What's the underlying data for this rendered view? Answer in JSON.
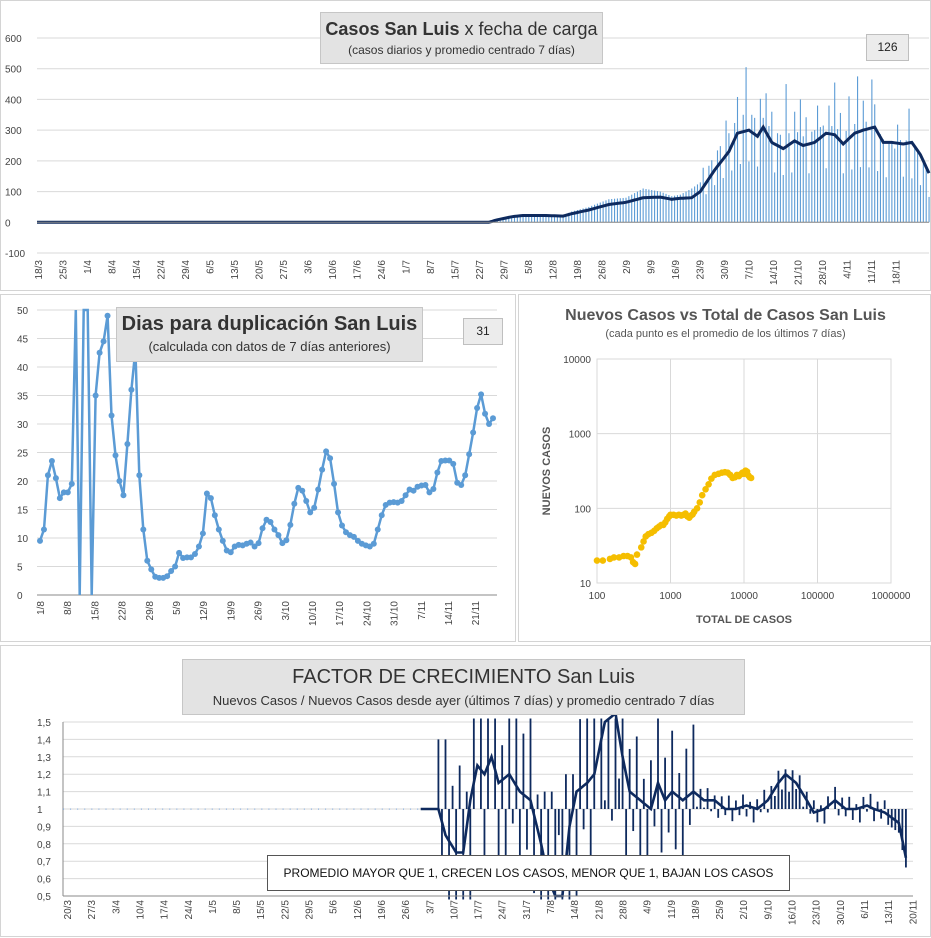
{
  "chart_data": [
    {
      "id": "cases",
      "type": "bar+line",
      "title_bold": "Casos San Luis",
      "title_rest": "x fecha de carga",
      "subtitle": "(casos diarios y promedio  centrado 7 días)",
      "badge": "126",
      "ylim": [
        -100,
        600
      ],
      "yticks": [
        -100,
        0,
        100,
        200,
        300,
        400,
        500,
        600
      ],
      "xticks": [
        "18/3",
        "25/3",
        "1/4",
        "8/4",
        "15/4",
        "22/4",
        "29/4",
        "6/5",
        "13/5",
        "20/5",
        "27/5",
        "3/6",
        "10/6",
        "17/6",
        "24/6",
        "1/7",
        "8/7",
        "15/7",
        "22/7",
        "29/7",
        "5/8",
        "12/8",
        "19/8",
        "26/8",
        "2/9",
        "9/9",
        "16/9",
        "23/9",
        "30/9",
        "7/10",
        "14/10",
        "21/10",
        "28/10",
        "4/11",
        "11/11",
        "18/11"
      ],
      "series": [
        {
          "name": "promedio centrado 7 días",
          "kind": "line",
          "color": "#0e2a5e",
          "knots": [
            [
              0,
              0
            ],
            [
              158,
              0
            ],
            [
              161,
              8
            ],
            [
              166,
              18
            ],
            [
              170,
              22
            ],
            [
              178,
              22
            ],
            [
              184,
              20
            ],
            [
              187,
              28
            ],
            [
              193,
              40
            ],
            [
              200,
              58
            ],
            [
              206,
              65
            ],
            [
              212,
              80
            ],
            [
              218,
              82
            ],
            [
              222,
              75
            ],
            [
              225,
              78
            ],
            [
              229,
              80
            ],
            [
              232,
              100
            ],
            [
              237,
              170
            ],
            [
              242,
              230
            ],
            [
              245,
              290
            ],
            [
              249,
              300
            ],
            [
              252,
              280
            ],
            [
              254,
              310
            ],
            [
              257,
              260
            ],
            [
              261,
              240
            ],
            [
              265,
              265
            ],
            [
              268,
              250
            ],
            [
              272,
              260
            ],
            [
              276,
              290
            ],
            [
              279,
              285
            ],
            [
              282,
              255
            ],
            [
              286,
              290
            ],
            [
              289,
              300
            ],
            [
              293,
              310
            ],
            [
              296,
              260
            ],
            [
              299,
              260
            ],
            [
              303,
              255
            ],
            [
              306,
              260
            ],
            [
              309,
              220
            ],
            [
              312,
              160
            ]
          ]
        },
        {
          "name": "casos diarios",
          "kind": "bar",
          "color": "#5b9bd5",
          "knots": [
            [
              0,
              0
            ],
            [
              158,
              0
            ],
            [
              161,
              12
            ],
            [
              166,
              22
            ],
            [
              170,
              25
            ],
            [
              178,
              25
            ],
            [
              184,
              22
            ],
            [
              187,
              35
            ],
            [
              193,
              50
            ],
            [
              200,
              75
            ],
            [
              206,
              80
            ],
            [
              212,
              110
            ],
            [
              218,
              100
            ],
            [
              222,
              85
            ],
            [
              225,
              90
            ],
            [
              229,
              110
            ],
            [
              232,
              130
            ],
            [
              237,
              220
            ],
            [
              242,
              290
            ],
            [
              245,
              340
            ],
            [
              249,
              360
            ],
            [
              252,
              330
            ],
            [
              254,
              340
            ],
            [
              257,
              300
            ],
            [
              261,
              280
            ],
            [
              265,
              300
            ],
            [
              268,
              280
            ],
            [
              272,
              300
            ],
            [
              276,
              320
            ],
            [
              279,
              310
            ],
            [
              282,
              290
            ],
            [
              286,
              320
            ],
            [
              289,
              330
            ],
            [
              293,
              320
            ],
            [
              296,
              270
            ],
            [
              299,
              260
            ],
            [
              303,
              270
            ],
            [
              306,
              260
            ],
            [
              309,
              220
            ],
            [
              312,
              150
            ]
          ],
          "peaks": [
            [
              248,
              505
            ],
            [
              255,
              420
            ],
            [
              262,
              450
            ],
            [
              267,
              400
            ],
            [
              273,
              380
            ],
            [
              279,
              455
            ],
            [
              284,
              410
            ],
            [
              287,
              475
            ],
            [
              292,
              465
            ],
            [
              300,
              240
            ],
            [
              305,
              370
            ]
          ]
        }
      ]
    },
    {
      "id": "doubling",
      "type": "line",
      "title": "Dias para duplicación San Luis",
      "subtitle": "(calculada con datos de 7 días anteriores)",
      "badge": "31",
      "ylim": [
        0,
        50
      ],
      "yticks": [
        0,
        5,
        10,
        15,
        20,
        25,
        30,
        35,
        40,
        45,
        50
      ],
      "xticks": [
        "1/8",
        "8/8",
        "15/8",
        "22/8",
        "29/8",
        "5/9",
        "12/9",
        "19/9",
        "26/9",
        "3/10",
        "10/10",
        "17/10",
        "24/10",
        "31/10",
        "7/11",
        "14/11",
        "21/11"
      ],
      "series": [
        {
          "name": "días para duplicación",
          "color": "#5b9bd5",
          "values": [
            9.5,
            11.5,
            21,
            23.5,
            20.5,
            17,
            18,
            18,
            19.5,
            50,
            0,
            50,
            50,
            0,
            35,
            42.5,
            44.5,
            49,
            31.5,
            24.5,
            20,
            17.5,
            26.5,
            36,
            43,
            21,
            11.5,
            6,
            4.5,
            3.2,
            3,
            3,
            3.3,
            4.2,
            5,
            7.4,
            6.5,
            6.6,
            6.6,
            7.2,
            8.5,
            10.8,
            17.8,
            17,
            14,
            11.5,
            9.5,
            7.8,
            7.5,
            8.5,
            8.8,
            8.7,
            9,
            9.2,
            8.5,
            9.1,
            11.7,
            13.2,
            12.8,
            11.5,
            10.5,
            9.1,
            9.6,
            12.3,
            16,
            18.8,
            18.3,
            16.5,
            14.5,
            15.3,
            18.5,
            22,
            25.2,
            24,
            19.5,
            14.5,
            12.2,
            11,
            10.5,
            10.2,
            9.5,
            9,
            8.7,
            8.5,
            9,
            11.5,
            14,
            15.8,
            16.2,
            16.3,
            16.2,
            16.5,
            17.5,
            18.5,
            18.3,
            19,
            19.2,
            19.3,
            18,
            18.6,
            21.5,
            23.5,
            23.6,
            23.6,
            23,
            19.7,
            19.3,
            21,
            24.7,
            28.5,
            32.8,
            35.2,
            31.8,
            30,
            31
          ]
        }
      ]
    },
    {
      "id": "scatter",
      "type": "scatter",
      "title": "Nuevos Casos vs Total de Casos San Luis",
      "subtitle": "(cada punto es el promedio de los últimos 7 días)",
      "xlabel": "TOTAL DE CASOS",
      "ylabel": "NUEVOS CASOS",
      "xscale": "log",
      "yscale": "log",
      "xlim": [
        100,
        1000000
      ],
      "ylim": [
        10,
        10000
      ],
      "xticks": [
        "100",
        "1000",
        "10000",
        "100000",
        "1000000"
      ],
      "yticks": [
        "10",
        "100",
        "1000",
        "10000"
      ],
      "series": [
        {
          "name": "promedio últimos 7 días",
          "color": "#f5be00",
          "points": [
            [
              100,
              20
            ],
            [
              120,
              20
            ],
            [
              150,
              21
            ],
            [
              170,
              22
            ],
            [
              200,
              22
            ],
            [
              230,
              23
            ],
            [
              260,
              23
            ],
            [
              290,
              22
            ],
            [
              310,
              19
            ],
            [
              330,
              18
            ],
            [
              350,
              24
            ],
            [
              400,
              30
            ],
            [
              430,
              36
            ],
            [
              460,
              42
            ],
            [
              500,
              45
            ],
            [
              550,
              47
            ],
            [
              600,
              50
            ],
            [
              650,
              54
            ],
            [
              700,
              57
            ],
            [
              750,
              60
            ],
            [
              800,
              60
            ],
            [
              850,
              65
            ],
            [
              900,
              72
            ],
            [
              960,
              78
            ],
            [
              1000,
              82
            ],
            [
              1100,
              82
            ],
            [
              1200,
              80
            ],
            [
              1300,
              82
            ],
            [
              1400,
              80
            ],
            [
              1500,
              82
            ],
            [
              1600,
              85
            ],
            [
              1700,
              78
            ],
            [
              1800,
              75
            ],
            [
              1900,
              80
            ],
            [
              2000,
              83
            ],
            [
              2100,
              90
            ],
            [
              2300,
              100
            ],
            [
              2500,
              120
            ],
            [
              2700,
              150
            ],
            [
              3000,
              180
            ],
            [
              3300,
              210
            ],
            [
              3600,
              250
            ],
            [
              4000,
              280
            ],
            [
              4500,
              290
            ],
            [
              5000,
              300
            ],
            [
              5500,
              305
            ],
            [
              6000,
              300
            ],
            [
              6500,
              280
            ],
            [
              7000,
              255
            ],
            [
              7500,
              260
            ],
            [
              8000,
              280
            ],
            [
              8500,
              270
            ],
            [
              9000,
              285
            ],
            [
              9500,
              300
            ],
            [
              10000,
              290
            ],
            [
              10500,
              320
            ],
            [
              11000,
              310
            ],
            [
              11500,
              275
            ],
            [
              12000,
              260
            ],
            [
              12500,
              255
            ]
          ]
        }
      ]
    },
    {
      "id": "growth",
      "type": "bar+line",
      "title": "FACTOR DE CRECIMIENTO San Luis",
      "subtitle": "Nuevos Casos  / Nuevos Casos desde ayer (últimos 7 días) y promedio  centrado 7 días",
      "annotation": "PROMEDIO MAYOR QUE 1, CRECEN LOS CASOS, MENOR QUE 1, BAJAN LOS CASOS",
      "ylim": [
        0.5,
        1.5
      ],
      "yticks": [
        "0,5",
        "0,6",
        "0,7",
        "0,8",
        "0,9",
        "1",
        "1,1",
        "1,2",
        "1,3",
        "1,4",
        "1,5"
      ],
      "xticks": [
        "20/3",
        "27/3",
        "3/4",
        "10/4",
        "17/4",
        "24/4",
        "1/5",
        "8/5",
        "15/5",
        "22/5",
        "29/5",
        "5/6",
        "12/6",
        "19/6",
        "26/6",
        "3/7",
        "10/7",
        "17/7",
        "24/7",
        "31/7",
        "7/8",
        "14/8",
        "21/8",
        "28/8",
        "4/9",
        "11/9",
        "18/9",
        "25/9",
        "2/10",
        "9/10",
        "16/10",
        "23/10",
        "30/10",
        "6/11",
        "13/11",
        "20/11"
      ],
      "series": [
        {
          "name": "promedio centrado 7 días",
          "kind": "line",
          "color": "#0e2a5e",
          "knots": [
            [
              101,
              1
            ],
            [
              106,
              1
            ],
            [
              108,
              0.85
            ],
            [
              111,
              0.75
            ],
            [
              113,
              0.75
            ],
            [
              115,
              1.05
            ],
            [
              117,
              1.25
            ],
            [
              119,
              1.2
            ],
            [
              121,
              1.3
            ],
            [
              123,
              1.15
            ],
            [
              126,
              1.2
            ],
            [
              129,
              1.1
            ],
            [
              132,
              1.05
            ],
            [
              135,
              0.8
            ],
            [
              137,
              0.6
            ],
            [
              139,
              0.5
            ],
            [
              141,
              0.5
            ],
            [
              143,
              0.9
            ],
            [
              145,
              1.1
            ],
            [
              148,
              1.15
            ],
            [
              150,
              1.2
            ],
            [
              153,
              1.5
            ],
            [
              156,
              1.55
            ],
            [
              158,
              1.3
            ],
            [
              160,
              1.1
            ],
            [
              163,
              1.05
            ],
            [
              166,
              1.0
            ],
            [
              168,
              1.15
            ],
            [
              170,
              1.05
            ],
            [
              172,
              1.1
            ],
            [
              175,
              1.05
            ],
            [
              178,
              1.1
            ],
            [
              181,
              1.05
            ],
            [
              184,
              1.05
            ],
            [
              187,
              1.0
            ],
            [
              190,
              1.0
            ],
            [
              193,
              1.02
            ],
            [
              196,
              1.0
            ],
            [
              199,
              1.05
            ],
            [
              202,
              1.15
            ],
            [
              204,
              1.2
            ],
            [
              207,
              1.15
            ],
            [
              210,
              1.05
            ],
            [
              212,
              0.98
            ],
            [
              215,
              1.0
            ],
            [
              218,
              1.05
            ],
            [
              221,
              1.0
            ],
            [
              224,
              1.0
            ],
            [
              227,
              1.02
            ],
            [
              229,
              1.0
            ],
            [
              232,
              0.98
            ],
            [
              234,
              0.95
            ],
            [
              236,
              0.92
            ],
            [
              237,
              0.82
            ],
            [
              238,
              0.72
            ]
          ]
        },
        {
          "name": "factor diario",
          "kind": "bar",
          "color": "#0e2a5e"
        }
      ]
    }
  ]
}
